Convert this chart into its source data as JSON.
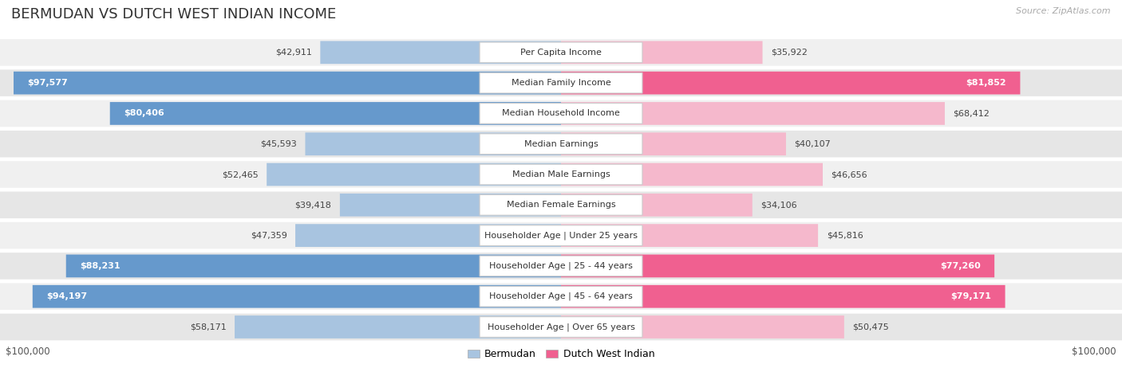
{
  "title": "BERMUDAN VS DUTCH WEST INDIAN INCOME",
  "source": "Source: ZipAtlas.com",
  "categories": [
    "Per Capita Income",
    "Median Family Income",
    "Median Household Income",
    "Median Earnings",
    "Median Male Earnings",
    "Median Female Earnings",
    "Householder Age | Under 25 years",
    "Householder Age | 25 - 44 years",
    "Householder Age | 45 - 64 years",
    "Householder Age | Over 65 years"
  ],
  "bermudan": [
    42911,
    97577,
    80406,
    45593,
    52465,
    39418,
    47359,
    88231,
    94197,
    58171
  ],
  "dutch_west_indian": [
    35922,
    81852,
    68412,
    40107,
    46656,
    34106,
    45816,
    77260,
    79171,
    50475
  ],
  "max_val": 100000,
  "bar_color_bermudan_normal": "#a8c4e0",
  "bar_color_bermudan_highlight": "#6699cc",
  "bar_color_dutch_normal": "#f5b8cc",
  "bar_color_dutch_highlight": "#f06090",
  "highlight_threshold": 70000,
  "row_bg_even": "#f0f0f0",
  "row_bg_odd": "#e6e6e6",
  "center_label_bg": "#ffffff",
  "center_label_edge": "#d0d0d0",
  "legend_bermudan": "Bermudan",
  "legend_dutch": "Dutch West Indian",
  "x_label_left": "$100,000",
  "x_label_right": "$100,000",
  "title_fontsize": 13,
  "label_fontsize": 8,
  "cat_fontsize": 8
}
